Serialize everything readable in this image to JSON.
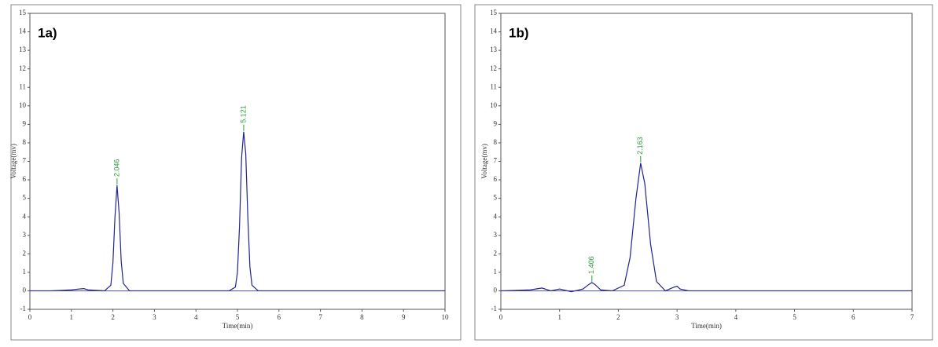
{
  "chart_data": [
    {
      "type": "line",
      "panel_label": "1a)",
      "x_label": "Time(min)",
      "y_label": "Voltage(mv)",
      "series": [
        {
          "color": "#23238f",
          "x": [
            0,
            0.5,
            1,
            1.2,
            1.3,
            1.4,
            1.8,
            1.95,
            2.0,
            2.05,
            2.1,
            2.15,
            2.2,
            2.25,
            2.4,
            3,
            4,
            4.8,
            4.95,
            5.0,
            5.05,
            5.1,
            5.15,
            5.2,
            5.25,
            5.3,
            5.35,
            5.5,
            6,
            8,
            10
          ],
          "values": [
            0,
            0,
            0.05,
            0.1,
            0.12,
            0.05,
            0,
            0.3,
            1.5,
            4.0,
            5.7,
            4.2,
            1.6,
            0.4,
            0,
            0,
            0,
            0,
            0.2,
            1.0,
            3.5,
            7.2,
            8.6,
            7.4,
            4.0,
            1.3,
            0.3,
            0,
            0,
            0,
            0
          ]
        }
      ],
      "annotations": [
        {
          "text": "2.046",
          "x": 2.1,
          "y": 5.7
        },
        {
          "text": "5.121",
          "x": 5.15,
          "y": 8.6
        }
      ],
      "xlim": [
        0,
        10
      ],
      "xticks": [
        0,
        1,
        2,
        3,
        4,
        5,
        6,
        7,
        8,
        9,
        10
      ],
      "ylim": [
        -1,
        15
      ],
      "yticks": [
        -1,
        0,
        1,
        2,
        3,
        4,
        5,
        6,
        7,
        8,
        9,
        10,
        11,
        12,
        13,
        14,
        15
      ]
    },
    {
      "type": "line",
      "panel_label": "1b)",
      "x_label": "Time(min)",
      "y_label": "Voltage(mv)",
      "series": [
        {
          "color": "#23238f",
          "x": [
            0,
            0.5,
            0.7,
            0.85,
            1.0,
            1.2,
            1.4,
            1.5,
            1.55,
            1.6,
            1.7,
            1.9,
            2.1,
            2.2,
            2.3,
            2.38,
            2.45,
            2.55,
            2.65,
            2.8,
            2.95,
            3.0,
            3.05,
            3.2,
            5,
            7
          ],
          "values": [
            0,
            0.05,
            0.15,
            0,
            0.1,
            -0.05,
            0.1,
            0.35,
            0.45,
            0.35,
            0.05,
            0,
            0.3,
            1.8,
            5.0,
            6.9,
            5.8,
            2.5,
            0.5,
            0,
            0.2,
            0.25,
            0.1,
            0,
            0,
            0
          ]
        }
      ],
      "annotations": [
        {
          "text": "1.406",
          "x": 1.55,
          "y": 0.45
        },
        {
          "text": "2.163",
          "x": 2.38,
          "y": 6.9
        }
      ],
      "xlim": [
        0,
        7
      ],
      "xticks": [
        0,
        1,
        2,
        3,
        4,
        5,
        6,
        7
      ],
      "ylim": [
        -1,
        15
      ],
      "yticks": [
        -1,
        0,
        1,
        2,
        3,
        4,
        5,
        6,
        7,
        8,
        9,
        10,
        11,
        12,
        13,
        14,
        15
      ]
    }
  ]
}
